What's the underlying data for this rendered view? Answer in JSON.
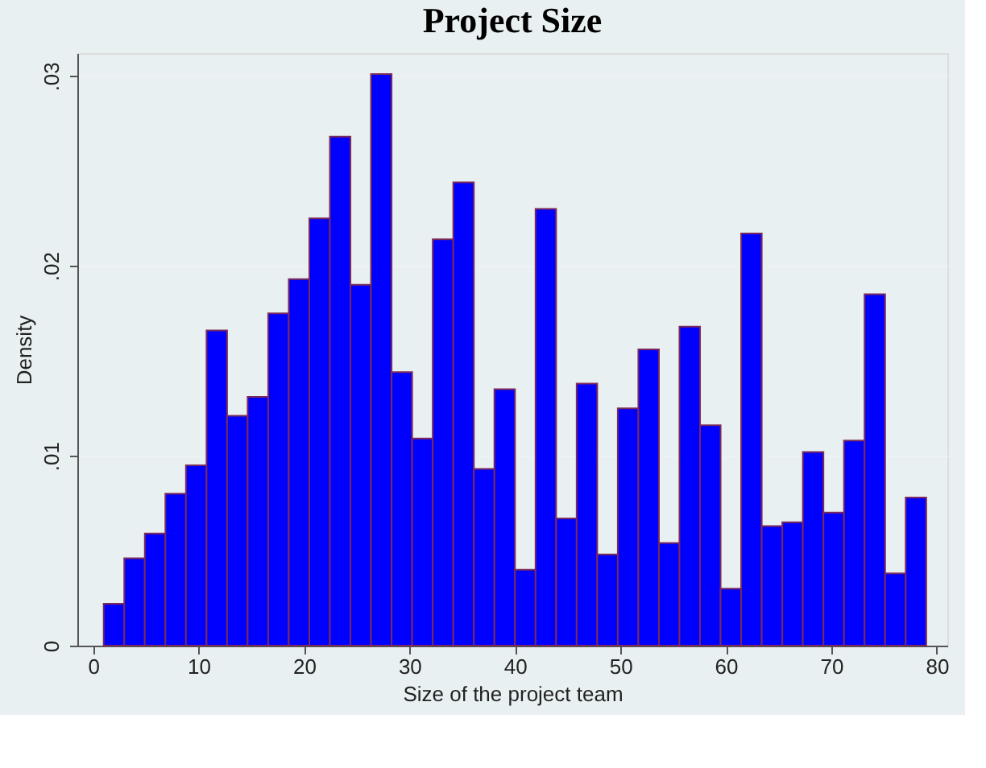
{
  "chart_data": {
    "type": "histogram",
    "title": "Project Size",
    "xlabel": "Size of the project team",
    "ylabel": "Density",
    "bins": [
      1,
      2.95,
      4.9,
      6.85,
      8.8,
      10.75,
      12.7,
      14.65,
      16.6,
      18.55,
      20.5,
      22.45,
      24.4,
      26.35,
      28.3,
      30.25,
      32.2,
      34.15,
      36.1,
      38.05,
      40,
      41.95,
      43.9,
      45.85,
      47.8,
      49.75,
      51.7,
      53.65,
      55.6,
      57.55,
      59.5,
      61.45,
      63.4,
      65.35,
      67.3,
      69.25,
      71.2,
      73.15,
      75.1,
      77.05,
      79
    ],
    "values": [
      0.0022,
      0.0046,
      0.0059,
      0.008,
      0.0095,
      0.0166,
      0.0121,
      0.0131,
      0.0175,
      0.0193,
      0.0225,
      0.0268,
      0.019,
      0.0301,
      0.0144,
      0.0109,
      0.0214,
      0.0244,
      0.0093,
      0.0135,
      0.004,
      0.023,
      0.0067,
      0.0138,
      0.0048,
      0.0125,
      0.0156,
      0.0054,
      0.0168,
      0.0116,
      0.003,
      0.0217,
      0.0063,
      0.0065,
      0.0102,
      0.007,
      0.0108,
      0.0185,
      0.0038,
      0.0078
    ],
    "color": "#0000ff",
    "xlim": [
      -1.5,
      81
    ],
    "xticks": [
      0,
      10,
      20,
      30,
      40,
      50,
      60,
      70,
      80
    ],
    "ylim": [
      0,
      0.0312
    ],
    "yticks": [
      0,
      {
        "value": 0.01,
        "label": ".01"
      },
      {
        "value": 0.02,
        "label": ".02"
      },
      {
        "value": 0.03,
        "label": ".03"
      }
    ],
    "grid": "y"
  }
}
